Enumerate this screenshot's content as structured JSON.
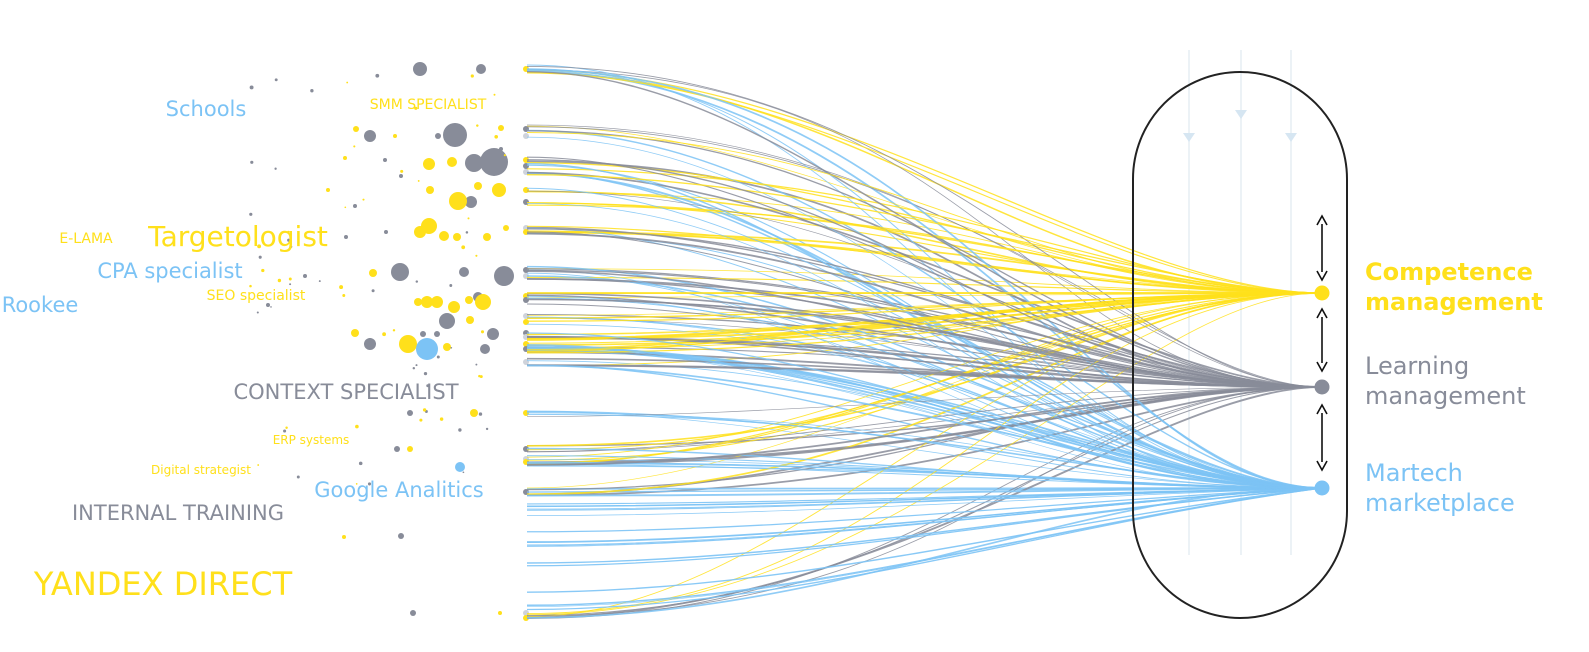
{
  "colors": {
    "yellow": "#FFE01B",
    "gray": "#888C99",
    "blue": "#7CC3F5",
    "frame": "#222222",
    "guide": "#E6EDF3"
  },
  "left_labels": [
    {
      "id": "schools",
      "text": "Schools",
      "color": "blue"
    },
    {
      "id": "smm",
      "text": "SMM SPECIALIST",
      "color": "yellow"
    },
    {
      "id": "elama",
      "text": "E-LAMA",
      "color": "yellow"
    },
    {
      "id": "targetologist",
      "text": "Targetologist",
      "color": "yellow"
    },
    {
      "id": "cpa",
      "text": "CPA specialist",
      "color": "blue"
    },
    {
      "id": "seo",
      "text": "SEO specialist",
      "color": "yellow"
    },
    {
      "id": "rookee",
      "text": "Rookee",
      "color": "blue"
    },
    {
      "id": "context",
      "text": "CONTEXT SPECIALIST",
      "color": "gray"
    },
    {
      "id": "erp",
      "text": "ERP systems",
      "color": "yellow"
    },
    {
      "id": "digital",
      "text": "Digital strategist",
      "color": "yellow"
    },
    {
      "id": "google",
      "text": "Google Analitics",
      "color": "blue"
    },
    {
      "id": "internal",
      "text": "INTERNAL TRAINING",
      "color": "gray"
    },
    {
      "id": "yandex",
      "text": "YANDEX DIRECT",
      "color": "yellow"
    }
  ],
  "targets": [
    {
      "id": "competence",
      "line1": "Competence",
      "line2": "management",
      "color": "yellow"
    },
    {
      "id": "learning",
      "line1": "Learning",
      "line2": "management",
      "color": "gray"
    },
    {
      "id": "martech",
      "line1": "Martech",
      "line2": "marketplace",
      "color": "blue"
    }
  ]
}
